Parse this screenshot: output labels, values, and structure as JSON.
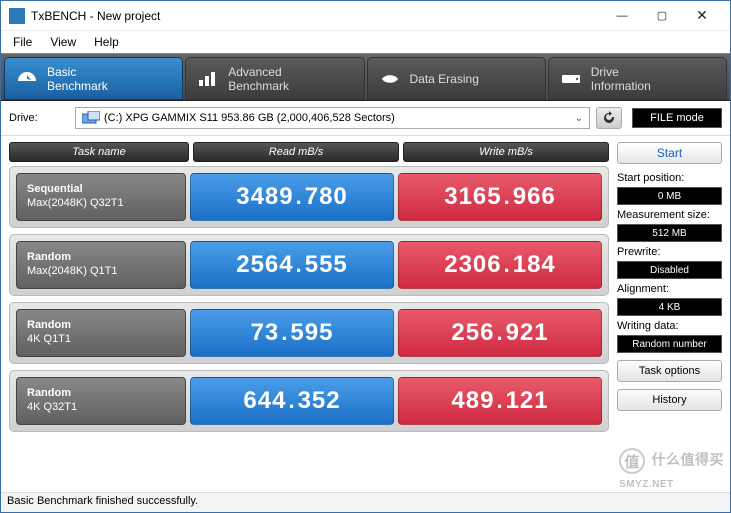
{
  "window": {
    "title": "TxBENCH - New project",
    "menu": [
      "File",
      "View",
      "Help"
    ]
  },
  "tabs": [
    {
      "label_l1": "Basic",
      "label_l2": "Benchmark",
      "active": true
    },
    {
      "label_l1": "Advanced",
      "label_l2": "Benchmark",
      "active": false
    },
    {
      "label_l1": "Data Erasing",
      "label_l2": "",
      "active": false
    },
    {
      "label_l1": "Drive",
      "label_l2": "Information",
      "active": false
    }
  ],
  "drive": {
    "label": "Drive:",
    "selected": "(C:) XPG GAMMIX S11  953.86 GB (2,000,406,528 Sectors)",
    "file_mode": "FILE mode"
  },
  "headers": {
    "task": "Task name",
    "read": "Read mB/s",
    "write": "Write mB/s"
  },
  "rows": [
    {
      "name_l1": "Sequential",
      "name_l2": "Max(2048K) Q32T1",
      "read": "3489.780",
      "write": "3165.966"
    },
    {
      "name_l1": "Random",
      "name_l2": "Max(2048K) Q1T1",
      "read": "2564.555",
      "write": "2306.184"
    },
    {
      "name_l1": "Random",
      "name_l2": "4K Q1T1",
      "read": "73.595",
      "write": "256.921"
    },
    {
      "name_l1": "Random",
      "name_l2": "4K Q32T1",
      "read": "644.352",
      "write": "489.121"
    }
  ],
  "side": {
    "start": "Start",
    "start_pos_label": "Start position:",
    "start_pos_value": "0 MB",
    "meas_size_label": "Measurement size:",
    "meas_size_value": "512 MB",
    "prewrite_label": "Prewrite:",
    "prewrite_value": "Disabled",
    "alignment_label": "Alignment:",
    "alignment_value": "4 KB",
    "writing_data_label": "Writing data:",
    "writing_data_value": "Random number",
    "task_options": "Task options",
    "history": "History"
  },
  "status": "Basic Benchmark finished successfully.",
  "colors": {
    "read_bg": "#2a80d8",
    "write_bg": "#d8304a",
    "tab_active": "#2a7ac8",
    "header_bg": "#3a3a3a"
  },
  "watermark": "什么值得买 SMYZ.NET"
}
